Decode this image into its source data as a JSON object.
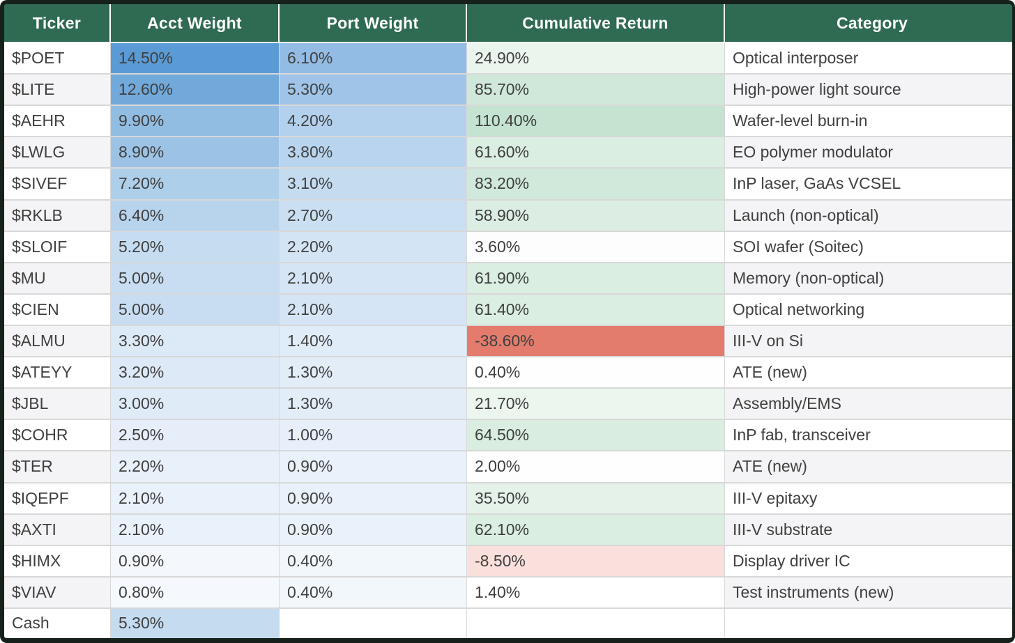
{
  "chart_data": {
    "type": "table",
    "columns": [
      "Ticker",
      "Acct Weight",
      "Port Weight",
      "Cumulative Return",
      "Category"
    ],
    "rows": [
      {
        "ticker": "$POET",
        "acct": "14.50%",
        "port": "6.10%",
        "ret": "24.90%",
        "cat": "Optical interposer",
        "acct_bg": "#5b9bd5",
        "port_bg": "#93bce4",
        "ret_bg": "#eaf5ee",
        "stripe": "#ffffff"
      },
      {
        "ticker": "$LITE",
        "acct": "12.60%",
        "port": "5.30%",
        "ret": "85.70%",
        "cat": "High-power light source",
        "acct_bg": "#72a9db",
        "port_bg": "#9fc4e7",
        "ret_bg": "#d0e8d9",
        "stripe": "#f4f4f6"
      },
      {
        "ticker": "$AEHR",
        "acct": "9.90%",
        "port": "4.20%",
        "ret": "110.40%",
        "cat": "Wafer-level burn-in",
        "acct_bg": "#92bde3",
        "port_bg": "#b3d0ec",
        "ret_bg": "#c5e3d1",
        "stripe": "#ffffff"
      },
      {
        "ticker": "$LWLG",
        "acct": "8.90%",
        "port": "3.80%",
        "ret": "61.60%",
        "cat": "EO polymer modulator",
        "acct_bg": "#9cc3e6",
        "port_bg": "#b9d4ee",
        "ret_bg": "#daeee2",
        "stripe": "#f4f4f6"
      },
      {
        "ticker": "$SIVEF",
        "acct": "7.20%",
        "port": "3.10%",
        "ret": "83.20%",
        "cat": "InP laser, GaAs VCSEL",
        "acct_bg": "#aecfea",
        "port_bg": "#c4dbf0",
        "ret_bg": "#d1e9da",
        "stripe": "#ffffff"
      },
      {
        "ticker": "$RKLB",
        "acct": "6.40%",
        "port": "2.70%",
        "ret": "58.90%",
        "cat": "Launch (non-optical)",
        "acct_bg": "#b8d4ed",
        "port_bg": "#cbdff2",
        "ret_bg": "#dceee3",
        "stripe": "#f4f4f6"
      },
      {
        "ticker": "$SLOIF",
        "acct": "5.20%",
        "port": "2.20%",
        "ret": "3.60%",
        "cat": "SOI wafer (Soitec)",
        "acct_bg": "#c6dcf1",
        "port_bg": "#d3e4f4",
        "ret_bg": "#fcfdfc",
        "stripe": "#ffffff"
      },
      {
        "ticker": "$MU",
        "acct": "5.00%",
        "port": "2.10%",
        "ret": "61.90%",
        "cat": "Memory (non-optical)",
        "acct_bg": "#c8ddf1",
        "port_bg": "#d5e5f5",
        "ret_bg": "#daeee2",
        "stripe": "#f4f4f6"
      },
      {
        "ticker": "$CIEN",
        "acct": "5.00%",
        "port": "2.10%",
        "ret": "61.40%",
        "cat": "Optical networking",
        "acct_bg": "#c8ddf1",
        "port_bg": "#d5e5f5",
        "ret_bg": "#dbeee2",
        "stripe": "#ffffff"
      },
      {
        "ticker": "$ALMU",
        "acct": "3.30%",
        "port": "1.40%",
        "ret": "-38.60%",
        "cat": "III-V on Si",
        "acct_bg": "#dce9f6",
        "port_bg": "#e0ecf8",
        "ret_bg": "#e37c6c",
        "stripe": "#f4f4f6"
      },
      {
        "ticker": "$ATEYY",
        "acct": "3.20%",
        "port": "1.30%",
        "ret": "0.40%",
        "cat": "ATE (new)",
        "acct_bg": "#dde9f6",
        "port_bg": "#e2edf8",
        "ret_bg": "#fefefe",
        "stripe": "#ffffff"
      },
      {
        "ticker": "$JBL",
        "acct": "3.00%",
        "port": "1.30%",
        "ret": "21.70%",
        "cat": "Assembly/EMS",
        "acct_bg": "#dfebf7",
        "port_bg": "#e2edf8",
        "ret_bg": "#ebf6ef",
        "stripe": "#f4f4f6"
      },
      {
        "ticker": "$COHR",
        "acct": "2.50%",
        "port": "1.00%",
        "ret": "64.50%",
        "cat": "InP fab, transceiver",
        "acct_bg": "#e5eef9",
        "port_bg": "#e7f0fa",
        "ret_bg": "#d9ede1",
        "stripe": "#ffffff"
      },
      {
        "ticker": "$TER",
        "acct": "2.20%",
        "port": "0.90%",
        "ret": "2.00%",
        "cat": "ATE (new)",
        "acct_bg": "#e8f0fa",
        "port_bg": "#e9f2fa",
        "ret_bg": "#fdfefd",
        "stripe": "#f4f4f6"
      },
      {
        "ticker": "$IQEPF",
        "acct": "2.10%",
        "port": "0.90%",
        "ret": "35.50%",
        "cat": "III-V epitaxy",
        "acct_bg": "#e9f1fa",
        "port_bg": "#e9f2fa",
        "ret_bg": "#e5f2e9",
        "stripe": "#ffffff"
      },
      {
        "ticker": "$AXTI",
        "acct": "2.10%",
        "port": "0.90%",
        "ret": "62.10%",
        "cat": "III-V substrate",
        "acct_bg": "#e9f1fa",
        "port_bg": "#e9f2fa",
        "ret_bg": "#daeee2",
        "stripe": "#f4f4f6"
      },
      {
        "ticker": "$HIMX",
        "acct": "0.90%",
        "port": "0.40%",
        "ret": "-8.50%",
        "cat": "Display driver IC",
        "acct_bg": "#f4f8fd",
        "port_bg": "#f2f7fc",
        "ret_bg": "#fae0dc",
        "stripe": "#ffffff"
      },
      {
        "ticker": "$VIAV",
        "acct": "0.80%",
        "port": "0.40%",
        "ret": "1.40%",
        "cat": "Test instruments (new)",
        "acct_bg": "#f5f9fd",
        "port_bg": "#f2f7fc",
        "ret_bg": "#fefffe",
        "stripe": "#f4f4f6"
      },
      {
        "ticker": "Cash",
        "acct": "5.30%",
        "port": "",
        "ret": "",
        "cat": "",
        "acct_bg": "#c5dbf0",
        "port_bg": "#ffffff",
        "ret_bg": "#ffffff",
        "stripe": "#ffffff"
      }
    ],
    "layout_hints": {
      "row_striping": [
        "#ffffff",
        "#f4f4f6"
      ],
      "conditional_formatting": {
        "acct_weight_scale": {
          "min_color": "#ffffff",
          "max_color": "#5b9bd5",
          "max_value": "14.50%"
        },
        "port_weight_scale": {
          "min_color": "#ffffff",
          "max_color": "#93bce4",
          "max_value": "6.10%"
        },
        "return_scale": {
          "negative_color": "#e37c6c",
          "zero_color": "#ffffff",
          "positive_color": "#c5e3d1"
        }
      }
    },
    "colors": {
      "header_bg": "#2f6a53",
      "header_text": "#ffffff",
      "outer_frame": "#16211b",
      "grid_line": "#d8d8d8",
      "body_text": "#3f3f3f"
    }
  }
}
